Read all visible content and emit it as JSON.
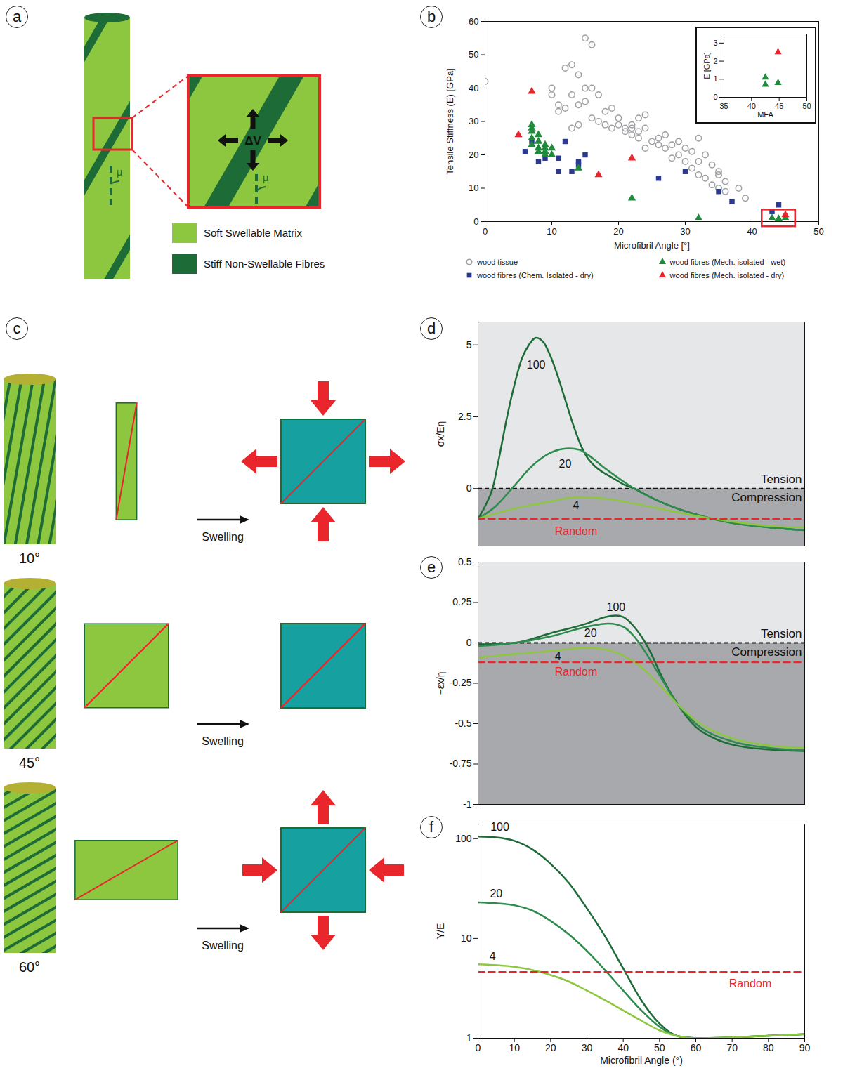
{
  "panels": {
    "a": {
      "panel": "a",
      "legend": [
        {
          "label": "Soft Swellable Matrix",
          "color": "#8dc63f"
        },
        {
          "label": "Stiff Non-Swellable Fibres",
          "color": "#1d6b37"
        }
      ],
      "zoom_label": "ΔV",
      "angle_symbol": "μ"
    },
    "c": {
      "panel": "c",
      "rows": [
        {
          "angle": 10,
          "angle_label": "10°",
          "action": "Swelling"
        },
        {
          "angle": 45,
          "angle_label": "45°",
          "action": "Swelling"
        },
        {
          "angle": 60,
          "angle_label": "60°",
          "action": "Swelling"
        }
      ]
    }
  },
  "chart_data": [
    {
      "panel": "b",
      "type": "scatter",
      "xlabel": "Microfibril Angle [°]",
      "ylabel": "Tensile Stiffness (E) [GPa]",
      "xlim": [
        0,
        50
      ],
      "ylim": [
        0,
        60
      ],
      "xticks": [
        0,
        10,
        20,
        30,
        40,
        50
      ],
      "yticks": [
        0,
        10,
        20,
        30,
        40,
        50,
        60
      ],
      "legend": "bottom",
      "series": [
        {
          "name": "wood tissue",
          "color": "#9d9fa2",
          "marker": "open circle",
          "x": [
            0,
            10,
            10,
            11,
            11,
            12,
            13,
            12,
            13,
            14,
            14,
            14,
            13,
            15,
            16,
            15,
            15,
            16,
            16,
            17,
            17,
            18,
            18,
            19,
            19,
            20,
            20,
            21,
            21,
            22,
            22,
            22,
            23,
            23,
            23,
            24,
            24,
            24,
            25,
            26,
            26,
            27,
            27,
            28,
            28,
            29,
            29,
            30,
            30,
            31,
            31,
            32,
            32,
            32,
            33,
            33,
            34,
            34,
            35,
            35,
            35,
            36,
            36,
            38,
            39
          ],
          "values": [
            42,
            40,
            38,
            33,
            35,
            46,
            47,
            34,
            38,
            44,
            35,
            29,
            28,
            55,
            53,
            40,
            36,
            40,
            31,
            30,
            38,
            33,
            29,
            34,
            28,
            29,
            31,
            28,
            27,
            29,
            28,
            26,
            25,
            31,
            27,
            32,
            28,
            22,
            24,
            23,
            25,
            26,
            22,
            23,
            19,
            24,
            20,
            22,
            18,
            21,
            16,
            25,
            18,
            14,
            20,
            13,
            11,
            17,
            15,
            10,
            14,
            9,
            12,
            10,
            7
          ]
        },
        {
          "name": "wood fibres (Chem. Isolated - dry)",
          "color": "#2b3990",
          "marker": "square",
          "x": [
            6,
            7,
            8,
            9,
            11,
            11,
            12,
            13,
            14,
            14,
            15,
            26,
            30,
            35,
            37,
            44,
            43
          ],
          "values": [
            21,
            24,
            18,
            19,
            15,
            19,
            24,
            15,
            17,
            18,
            20,
            13,
            15,
            9,
            6,
            5,
            3
          ]
        },
        {
          "name": "wood fibres (Mech. isolated - wet)",
          "color": "#1f8a3c",
          "marker": "triangle",
          "x": [
            7,
            7,
            7,
            7,
            7,
            8,
            8,
            8,
            8,
            9,
            9,
            9,
            9,
            10,
            10,
            14,
            22,
            32,
            43,
            44,
            45
          ],
          "values": [
            29,
            28,
            27,
            25,
            23,
            24,
            26,
            22,
            21,
            23,
            22,
            21,
            20,
            22,
            20,
            16,
            7,
            1,
            1,
            0.8,
            1
          ]
        },
        {
          "name": "wood fibres (Mech. isolated - dry)",
          "color": "#e8262b",
          "marker": "triangle",
          "x": [
            5,
            7,
            17,
            22,
            45
          ],
          "values": [
            26,
            39,
            14,
            19,
            2
          ]
        }
      ],
      "highlight": {
        "x": [
          41.5,
          46.5
        ],
        "y": [
          -1.5,
          3.5
        ],
        "color": "#e8262b"
      },
      "inset": {
        "type": "scatter",
        "xlabel": "MFA",
        "ylabel": "E [GPa]",
        "xlim": [
          35,
          50
        ],
        "ylim": [
          0,
          3.5
        ],
        "xticks": [
          35,
          40,
          45,
          50
        ],
        "yticks": [
          0,
          1,
          2,
          3
        ],
        "series": [
          {
            "color": "#1f8a3c",
            "marker": "triangle",
            "x": [
              42.5,
              42.5,
              44.8
            ],
            "values": [
              1.1,
              0.7,
              0.8
            ]
          },
          {
            "color": "#e8262b",
            "marker": "triangle",
            "x": [
              44.8
            ],
            "values": [
              2.5
            ]
          }
        ]
      }
    },
    {
      "panel": "d",
      "type": "line",
      "ylabel": "σx/Eη",
      "xlim": [
        0,
        90
      ],
      "ylim": [
        -2,
        5.8
      ],
      "yticks": [
        0,
        2.5,
        5
      ],
      "tick_labels": "y",
      "zones": [
        {
          "name": "Tension",
          "from": 0,
          "to": 5.8,
          "color": "#e6e7e8"
        },
        {
          "name": "Compression",
          "from": -2,
          "to": 0,
          "color": "#a7a9ac"
        }
      ],
      "series": [
        {
          "name": "100",
          "color": "#1d6b37",
          "line_style": "solid",
          "label_pos": [
            16,
            4.3
          ],
          "x": [
            0,
            2,
            4,
            6,
            8,
            10,
            12,
            14,
            16,
            18,
            20,
            22,
            24,
            26,
            28,
            30,
            32,
            34,
            36,
            38,
            40,
            43,
            46,
            50,
            55,
            60,
            70,
            80,
            90
          ],
          "values": [
            -1.05,
            -0.6,
            0,
            1.2,
            2.5,
            3.6,
            4.5,
            5,
            5.25,
            5.1,
            4.6,
            3.9,
            3.1,
            2.3,
            1.6,
            1.1,
            0.8,
            0.6,
            0.45,
            0.3,
            0.15,
            0,
            -0.2,
            -0.45,
            -0.7,
            -0.9,
            -1.2,
            -1.35,
            -1.45
          ]
        },
        {
          "name": "20",
          "color": "#2e8b4e",
          "line_style": "solid",
          "label_pos": [
            24,
            0.85
          ],
          "x": [
            0,
            5,
            10,
            15,
            20,
            25,
            28,
            30,
            35,
            40,
            43,
            50,
            60,
            70,
            80,
            90
          ],
          "values": [
            -1.05,
            -0.6,
            0.1,
            0.8,
            1.25,
            1.4,
            1.35,
            1.2,
            0.7,
            0.25,
            0,
            -0.45,
            -0.9,
            -1.2,
            -1.35,
            -1.45
          ]
        },
        {
          "name": "4",
          "color": "#8dc63f",
          "line_style": "solid",
          "label_pos": [
            27,
            -0.6
          ],
          "x": [
            0,
            10,
            20,
            27,
            35,
            40,
            50,
            60,
            70,
            80,
            90
          ],
          "values": [
            -1.05,
            -0.7,
            -0.45,
            -0.3,
            -0.35,
            -0.45,
            -0.7,
            -0.95,
            -1.15,
            -1.3,
            -1.35
          ]
        },
        {
          "name": "Random",
          "color": "#e8262b",
          "line_style": "dashed",
          "label_pos": [
            27,
            -1.5
          ],
          "x": [
            0,
            90
          ],
          "values": [
            -1.05,
            -1.05
          ]
        }
      ]
    },
    {
      "panel": "e",
      "type": "line",
      "ylabel": "−εx/η",
      "xlim": [
        0,
        90
      ],
      "ylim": [
        -1,
        0.5
      ],
      "yticks": [
        -1,
        -0.75,
        -0.5,
        -0.25,
        0,
        0.25,
        0.5
      ],
      "tick_labels": "y",
      "zones": [
        {
          "name": "Tension",
          "from": 0,
          "to": 0.5,
          "color": "#e6e7e8"
        },
        {
          "name": "Compression",
          "from": -1,
          "to": 0,
          "color": "#a7a9ac"
        }
      ],
      "series": [
        {
          "name": "100",
          "color": "#1d6b37",
          "line_style": "solid",
          "label_pos": [
            38,
            0.22
          ],
          "x": [
            0,
            10,
            20,
            30,
            35,
            38,
            40,
            43,
            45,
            48,
            50,
            55,
            60,
            65,
            70,
            80,
            90
          ],
          "values": [
            -0.01,
            0,
            0.06,
            0.12,
            0.16,
            0.17,
            0.16,
            0.1,
            0.04,
            -0.08,
            -0.18,
            -0.38,
            -0.52,
            -0.59,
            -0.63,
            -0.66,
            -0.67
          ]
        },
        {
          "name": "20",
          "color": "#2e8b4e",
          "line_style": "solid",
          "label_pos": [
            31,
            0.06
          ],
          "x": [
            0,
            10,
            20,
            30,
            36,
            40,
            43,
            45,
            50,
            55,
            60,
            70,
            80,
            90
          ],
          "values": [
            -0.02,
            0,
            0.04,
            0.1,
            0.12,
            0.1,
            0.04,
            -0.02,
            -0.2,
            -0.38,
            -0.5,
            -0.61,
            -0.65,
            -0.665
          ]
        },
        {
          "name": "4",
          "color": "#8dc63f",
          "line_style": "solid",
          "label_pos": [
            22,
            -0.085
          ],
          "x": [
            0,
            10,
            20,
            30,
            35,
            40,
            45,
            50,
            55,
            60,
            70,
            80,
            90
          ],
          "values": [
            -0.09,
            -0.07,
            -0.05,
            -0.03,
            -0.04,
            -0.08,
            -0.15,
            -0.26,
            -0.38,
            -0.48,
            -0.59,
            -0.635,
            -0.65
          ]
        },
        {
          "name": "Random",
          "color": "#e8262b",
          "line_style": "dashed",
          "label_pos": [
            27,
            -0.18
          ],
          "x": [
            0,
            90
          ],
          "values": [
            -0.12,
            -0.12
          ]
        }
      ]
    },
    {
      "panel": "f",
      "type": "line",
      "log": "y",
      "xlabel": "Microfibril Angle (°)",
      "ylabel": "Y/E",
      "xlim": [
        0,
        90
      ],
      "ylim": [
        1,
        140
      ],
      "xticks": [
        0,
        10,
        20,
        30,
        40,
        50,
        60,
        70,
        80,
        90
      ],
      "yticks": [
        1,
        10,
        100
      ],
      "series": [
        {
          "name": "100",
          "color": "#1d6b37",
          "line_style": "solid",
          "label_pos": [
            6,
            130
          ],
          "x": [
            0,
            5,
            10,
            15,
            20,
            25,
            30,
            35,
            40,
            45,
            50,
            55,
            60,
            65,
            70,
            80,
            90
          ],
          "values": [
            105,
            103,
            95,
            78,
            56,
            36,
            20,
            10.5,
            5,
            2.4,
            1.4,
            1.05,
            1,
            1,
            1.02,
            1.06,
            1.1
          ]
        },
        {
          "name": "20",
          "color": "#2e8b4e",
          "line_style": "solid",
          "label_pos": [
            5,
            28
          ],
          "x": [
            0,
            5,
            10,
            15,
            20,
            25,
            30,
            35,
            40,
            45,
            50,
            55,
            60,
            70,
            80,
            90
          ],
          "values": [
            23,
            22.5,
            21.5,
            19,
            15,
            11,
            7.5,
            4.8,
            3,
            1.9,
            1.3,
            1.05,
            1,
            1.02,
            1.06,
            1.1
          ]
        },
        {
          "name": "4",
          "color": "#8dc63f",
          "line_style": "solid",
          "label_pos": [
            4,
            6.6
          ],
          "x": [
            0,
            10,
            20,
            25,
            30,
            35,
            40,
            45,
            50,
            55,
            60,
            70,
            80,
            90
          ],
          "values": [
            5.5,
            5.2,
            4.3,
            3.7,
            3,
            2.4,
            1.9,
            1.5,
            1.2,
            1.05,
            1,
            1.02,
            1.06,
            1.1
          ]
        },
        {
          "name": "Random",
          "color": "#e8262b",
          "line_style": "dashed",
          "label_pos": [
            75,
            3.5
          ],
          "x": [
            0,
            90
          ],
          "values": [
            4.6,
            4.6
          ]
        }
      ]
    }
  ]
}
